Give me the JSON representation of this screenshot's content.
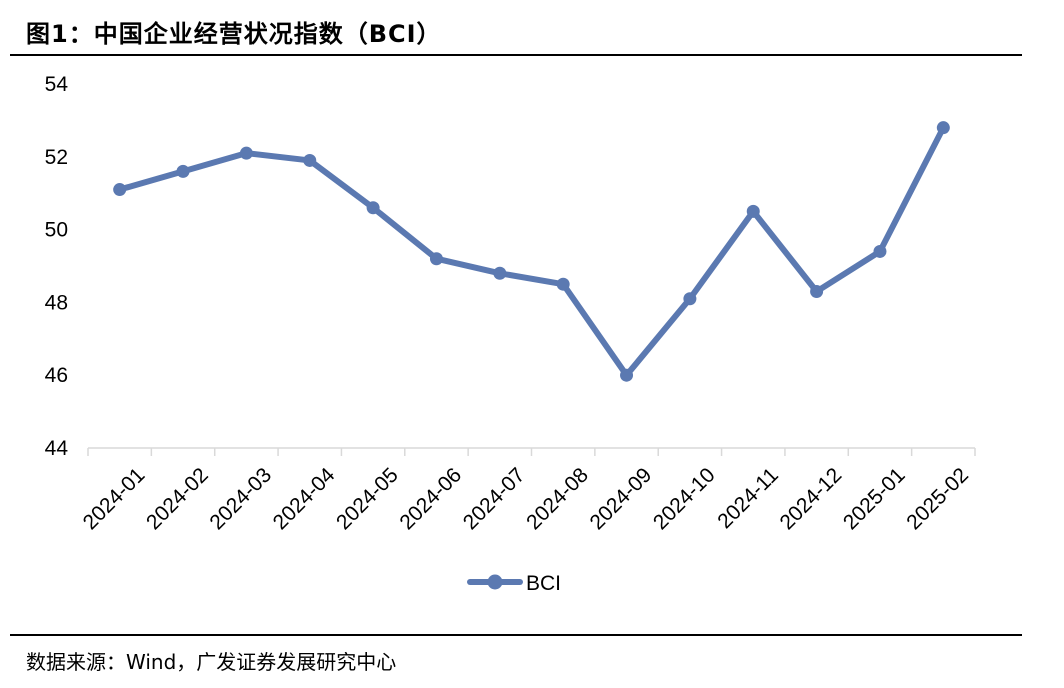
{
  "figure": {
    "title": "图1：中国企业经营状况指数（BCI）",
    "source": "数据来源：Wind，广发证券发展研究中心"
  },
  "chart_data": {
    "type": "line",
    "title": "图1：中国企业经营状况指数（BCI）",
    "xlabel": "",
    "ylabel": "",
    "categories": [
      "2024-01",
      "2024-02",
      "2024-03",
      "2024-04",
      "2024-05",
      "2024-06",
      "2024-07",
      "2024-08",
      "2024-09",
      "2024-10",
      "2024-11",
      "2024-12",
      "2025-01",
      "2025-02"
    ],
    "series": [
      {
        "name": "BCI",
        "values": [
          51.1,
          51.6,
          52.1,
          51.9,
          50.6,
          49.2,
          48.8,
          48.5,
          46.0,
          48.1,
          50.5,
          48.3,
          49.4,
          52.8
        ],
        "color": "#5B79B1"
      }
    ],
    "ylim": [
      44,
      54
    ],
    "yticks": [
      44,
      46,
      48,
      50,
      52,
      54
    ],
    "grid": false,
    "legend": "bottom-center"
  }
}
